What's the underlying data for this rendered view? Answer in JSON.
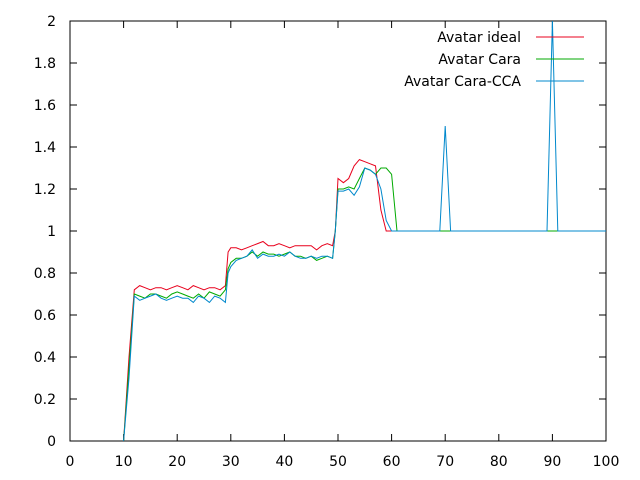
{
  "chart_data": {
    "type": "line",
    "title": "",
    "xlabel": "",
    "ylabel": "",
    "xlim": [
      0,
      100
    ],
    "ylim": [
      0,
      2
    ],
    "xticks": [
      "0",
      "10",
      "20",
      "30",
      "40",
      "50",
      "60",
      "70",
      "80",
      "90",
      "100"
    ],
    "yticks": [
      "0",
      "0.2",
      "0.4",
      "0.6",
      "0.8",
      "1",
      "1.2",
      "1.4",
      "1.6",
      "1.8",
      "2"
    ],
    "grid": false,
    "legend": "top-right",
    "series": [
      {
        "name": "Avatar ideal",
        "color": "#e8001c",
        "points": [
          [
            10,
            0
          ],
          [
            11,
            0.4
          ],
          [
            12,
            0.72
          ],
          [
            13,
            0.74
          ],
          [
            14,
            0.73
          ],
          [
            15,
            0.72
          ],
          [
            16,
            0.73
          ],
          [
            17,
            0.73
          ],
          [
            18,
            0.72
          ],
          [
            19,
            0.73
          ],
          [
            20,
            0.74
          ],
          [
            21,
            0.73
          ],
          [
            22,
            0.72
          ],
          [
            23,
            0.74
          ],
          [
            24,
            0.73
          ],
          [
            25,
            0.72
          ],
          [
            26,
            0.73
          ],
          [
            27,
            0.73
          ],
          [
            28,
            0.72
          ],
          [
            29,
            0.74
          ],
          [
            29.5,
            0.9
          ],
          [
            30,
            0.92
          ],
          [
            31,
            0.92
          ],
          [
            32,
            0.91
          ],
          [
            33,
            0.92
          ],
          [
            34,
            0.93
          ],
          [
            35,
            0.94
          ],
          [
            36,
            0.95
          ],
          [
            37,
            0.93
          ],
          [
            38,
            0.93
          ],
          [
            39,
            0.94
          ],
          [
            40,
            0.93
          ],
          [
            41,
            0.92
          ],
          [
            42,
            0.93
          ],
          [
            43,
            0.93
          ],
          [
            44,
            0.93
          ],
          [
            45,
            0.93
          ],
          [
            46,
            0.91
          ],
          [
            47,
            0.93
          ],
          [
            48,
            0.94
          ],
          [
            49,
            0.93
          ],
          [
            49.5,
            1.0
          ],
          [
            50,
            1.25
          ],
          [
            51,
            1.23
          ],
          [
            52,
            1.25
          ],
          [
            53,
            1.31
          ],
          [
            54,
            1.34
          ],
          [
            55,
            1.33
          ],
          [
            56,
            1.32
          ],
          [
            57,
            1.31
          ],
          [
            58,
            1.1
          ],
          [
            59,
            1.0
          ],
          [
            60,
            1.0
          ],
          [
            61,
            1.0
          ],
          [
            62,
            1.0
          ],
          [
            100,
            1.0
          ]
        ]
      },
      {
        "name": "Avatar Cara",
        "color": "#00aa00",
        "points": [
          [
            10,
            0
          ],
          [
            11,
            0.35
          ],
          [
            12,
            0.7
          ],
          [
            13,
            0.69
          ],
          [
            14,
            0.68
          ],
          [
            15,
            0.7
          ],
          [
            16,
            0.7
          ],
          [
            17,
            0.69
          ],
          [
            18,
            0.68
          ],
          [
            19,
            0.7
          ],
          [
            20,
            0.71
          ],
          [
            21,
            0.7
          ],
          [
            22,
            0.69
          ],
          [
            23,
            0.68
          ],
          [
            24,
            0.7
          ],
          [
            25,
            0.68
          ],
          [
            26,
            0.71
          ],
          [
            27,
            0.7
          ],
          [
            28,
            0.69
          ],
          [
            29,
            0.72
          ],
          [
            29.5,
            0.82
          ],
          [
            30,
            0.85
          ],
          [
            31,
            0.87
          ],
          [
            32,
            0.87
          ],
          [
            33,
            0.88
          ],
          [
            34,
            0.9
          ],
          [
            35,
            0.88
          ],
          [
            36,
            0.9
          ],
          [
            37,
            0.89
          ],
          [
            38,
            0.89
          ],
          [
            39,
            0.88
          ],
          [
            40,
            0.89
          ],
          [
            41,
            0.9
          ],
          [
            42,
            0.88
          ],
          [
            43,
            0.88
          ],
          [
            44,
            0.87
          ],
          [
            45,
            0.88
          ],
          [
            46,
            0.86
          ],
          [
            47,
            0.87
          ],
          [
            48,
            0.88
          ],
          [
            49,
            0.87
          ],
          [
            49.5,
            1.0
          ],
          [
            50,
            1.2
          ],
          [
            51,
            1.2
          ],
          [
            52,
            1.21
          ],
          [
            53,
            1.2
          ],
          [
            54,
            1.25
          ],
          [
            55,
            1.3
          ],
          [
            56,
            1.29
          ],
          [
            57,
            1.27
          ],
          [
            58,
            1.3
          ],
          [
            59,
            1.3
          ],
          [
            60,
            1.27
          ],
          [
            61,
            1.0
          ],
          [
            62,
            1.0
          ],
          [
            100,
            1.0
          ]
        ]
      },
      {
        "name": "Avatar Cara-CCA",
        "color": "#0088cc",
        "points": [
          [
            10,
            0
          ],
          [
            11,
            0.3
          ],
          [
            12,
            0.69
          ],
          [
            13,
            0.67
          ],
          [
            14,
            0.68
          ],
          [
            15,
            0.69
          ],
          [
            16,
            0.7
          ],
          [
            17,
            0.68
          ],
          [
            18,
            0.67
          ],
          [
            19,
            0.68
          ],
          [
            20,
            0.69
          ],
          [
            21,
            0.68
          ],
          [
            22,
            0.68
          ],
          [
            23,
            0.66
          ],
          [
            24,
            0.69
          ],
          [
            25,
            0.68
          ],
          [
            26,
            0.66
          ],
          [
            27,
            0.69
          ],
          [
            28,
            0.68
          ],
          [
            29,
            0.66
          ],
          [
            29.5,
            0.8
          ],
          [
            30,
            0.83
          ],
          [
            31,
            0.86
          ],
          [
            32,
            0.87
          ],
          [
            33,
            0.88
          ],
          [
            34,
            0.91
          ],
          [
            35,
            0.87
          ],
          [
            36,
            0.89
          ],
          [
            37,
            0.88
          ],
          [
            38,
            0.88
          ],
          [
            39,
            0.89
          ],
          [
            40,
            0.88
          ],
          [
            41,
            0.9
          ],
          [
            42,
            0.88
          ],
          [
            43,
            0.87
          ],
          [
            44,
            0.87
          ],
          [
            45,
            0.88
          ],
          [
            46,
            0.87
          ],
          [
            47,
            0.88
          ],
          [
            48,
            0.88
          ],
          [
            49,
            0.87
          ],
          [
            49.5,
            1.0
          ],
          [
            50,
            1.19
          ],
          [
            51,
            1.19
          ],
          [
            52,
            1.2
          ],
          [
            53,
            1.17
          ],
          [
            54,
            1.21
          ],
          [
            55,
            1.3
          ],
          [
            56,
            1.29
          ],
          [
            57,
            1.27
          ],
          [
            58,
            1.2
          ],
          [
            59,
            1.05
          ],
          [
            60,
            1.0
          ],
          [
            61,
            1.0
          ],
          [
            62,
            1.0
          ],
          [
            65,
            1.0
          ],
          [
            69,
            1.0
          ],
          [
            70,
            1.5
          ],
          [
            71,
            1.0
          ],
          [
            72,
            1.0
          ],
          [
            75,
            1.0
          ],
          [
            80,
            1.0
          ],
          [
            85,
            1.0
          ],
          [
            89,
            1.0
          ],
          [
            90,
            2.0
          ],
          [
            91,
            1.0
          ],
          [
            92,
            1.0
          ],
          [
            100,
            1.0
          ]
        ]
      }
    ]
  }
}
